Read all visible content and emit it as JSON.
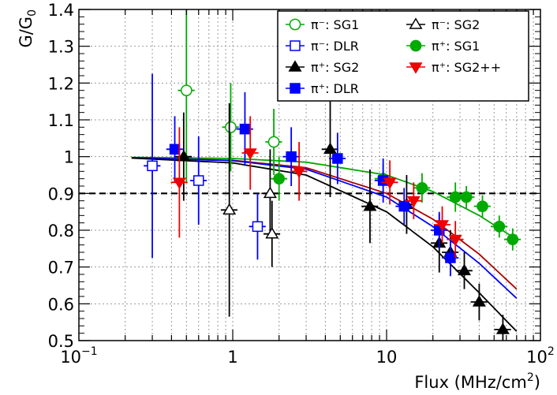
{
  "chart_data": {
    "type": "scatter",
    "title": "",
    "xlabel": "Flux (MHz/cm",
    "xlabel_sup": "2",
    "xlabel_close": ")",
    "ylabel": "G/G",
    "ylabel_sub": "0",
    "x_scale": "log",
    "xlim": [
      0.1,
      100
    ],
    "ylim": [
      0.5,
      1.4
    ],
    "grid": true,
    "legend_position": "top-right",
    "reference_line": {
      "y": 0.9,
      "style": "dashed",
      "color": "#000000"
    },
    "x_ticks": [
      {
        "value": 0.1,
        "base": "10",
        "exp": "−1"
      },
      {
        "value": 1,
        "label": "1"
      },
      {
        "value": 10,
        "label": "10"
      },
      {
        "value": 100,
        "base": "10",
        "exp": "2"
      }
    ],
    "y_ticks": [
      "0.5",
      "0.6",
      "0.7",
      "0.8",
      "0.9",
      "1",
      "1.1",
      "1.2",
      "1.3",
      "1.4"
    ],
    "series": [
      {
        "name": "π⁻: SG1",
        "color": "#00aa00",
        "marker": "circle",
        "filled": false,
        "points": [
          {
            "x": 0.5,
            "y": 1.18,
            "yerr": 0.25
          },
          {
            "x": 0.97,
            "y": 1.08,
            "yerr": 0.12
          },
          {
            "x": 1.85,
            "y": 1.04,
            "yerr": 0.09
          }
        ]
      },
      {
        "name": "π⁻: SG2",
        "color": "#000000",
        "marker": "triangle",
        "filled": false,
        "points": [
          {
            "x": 0.95,
            "y": 0.855,
            "yerr": 0.29
          },
          {
            "x": 1.75,
            "y": 0.9,
            "yerr": 0.12
          },
          {
            "x": 1.8,
            "y": 0.79,
            "yerr": 0.09
          }
        ]
      },
      {
        "name": "π⁻: DLR",
        "color": "#0000ff",
        "marker": "square",
        "filled": false,
        "points": [
          {
            "x": 0.3,
            "y": 0.975,
            "yerr": 0.25
          },
          {
            "x": 0.6,
            "y": 0.935,
            "yerr": 0.12
          },
          {
            "x": 1.45,
            "y": 0.81,
            "yerr": 0.09
          }
        ]
      },
      {
        "name": "π⁺: SG1",
        "color": "#00aa00",
        "marker": "circle",
        "filled": true,
        "points": [
          {
            "x": 2.0,
            "y": 0.94,
            "yerr": 0.06
          },
          {
            "x": 9.5,
            "y": 0.94,
            "yerr": 0.04
          },
          {
            "x": 17,
            "y": 0.915,
            "yerr": 0.04
          },
          {
            "x": 28,
            "y": 0.89,
            "yerr": 0.04
          },
          {
            "x": 33,
            "y": 0.89,
            "yerr": 0.03
          },
          {
            "x": 42,
            "y": 0.865,
            "yerr": 0.03
          },
          {
            "x": 54,
            "y": 0.81,
            "yerr": 0.03
          },
          {
            "x": 66,
            "y": 0.775,
            "yerr": 0.03
          }
        ]
      },
      {
        "name": "π⁺: SG2",
        "color": "#000000",
        "marker": "triangle",
        "filled": true,
        "points": [
          {
            "x": 0.48,
            "y": 1.0,
            "yerr": 0.12
          },
          {
            "x": 4.3,
            "y": 1.02,
            "yerr": 0.13
          },
          {
            "x": 7.8,
            "y": 0.865,
            "yerr": 0.1
          },
          {
            "x": 13.5,
            "y": 0.87,
            "yerr": 0.08
          },
          {
            "x": 22,
            "y": 0.765,
            "yerr": 0.08
          },
          {
            "x": 26,
            "y": 0.74,
            "yerr": 0.06
          },
          {
            "x": 32,
            "y": 0.69,
            "yerr": 0.05
          },
          {
            "x": 40,
            "y": 0.605,
            "yerr": 0.05
          },
          {
            "x": 57,
            "y": 0.53,
            "yerr": 0.04
          }
        ]
      },
      {
        "name": "π⁺: DLR",
        "color": "#0000ff",
        "marker": "square",
        "filled": true,
        "points": [
          {
            "x": 0.42,
            "y": 1.02,
            "yerr": 0.09
          },
          {
            "x": 1.2,
            "y": 1.075,
            "yerr": 0.1
          },
          {
            "x": 2.4,
            "y": 1.0,
            "yerr": 0.08
          },
          {
            "x": 4.8,
            "y": 0.995,
            "yerr": 0.07
          },
          {
            "x": 9.5,
            "y": 0.935,
            "yerr": 0.06
          },
          {
            "x": 13,
            "y": 0.865,
            "yerr": 0.05
          },
          {
            "x": 22,
            "y": 0.8,
            "yerr": 0.05
          },
          {
            "x": 26,
            "y": 0.725,
            "yerr": 0.05
          }
        ]
      },
      {
        "name": "π⁺: SG2++",
        "color": "#ee0000",
        "marker": "triangle-down",
        "filled": true,
        "points": [
          {
            "x": 0.45,
            "y": 0.93,
            "yerr": 0.15
          },
          {
            "x": 1.3,
            "y": 1.01,
            "yerr": 0.1
          },
          {
            "x": 2.7,
            "y": 0.96,
            "yerr": 0.08
          },
          {
            "x": 10.5,
            "y": 0.93,
            "yerr": 0.06
          },
          {
            "x": 15,
            "y": 0.88,
            "yerr": 0.05
          },
          {
            "x": 23,
            "y": 0.815,
            "yerr": 0.05
          },
          {
            "x": 28,
            "y": 0.775,
            "yerr": 0.05
          }
        ]
      }
    ],
    "fit_curves": [
      {
        "color": "#00aa00",
        "x": [
          0.22,
          1,
          3,
          10,
          20,
          40,
          70
        ],
        "y": [
          0.998,
          0.995,
          0.985,
          0.95,
          0.905,
          0.84,
          0.775
        ]
      },
      {
        "color": "#aa0000",
        "x": [
          0.22,
          1,
          3,
          10,
          20,
          40,
          70
        ],
        "y": [
          0.997,
          0.99,
          0.97,
          0.9,
          0.83,
          0.735,
          0.64
        ]
      },
      {
        "color": "#0000ff",
        "x": [
          0.22,
          1,
          3,
          10,
          20,
          40,
          70
        ],
        "y": [
          0.997,
          0.989,
          0.966,
          0.89,
          0.81,
          0.71,
          0.615
        ]
      },
      {
        "color": "#000000",
        "x": [
          0.22,
          1,
          3,
          10,
          20,
          40,
          70
        ],
        "y": [
          0.996,
          0.983,
          0.95,
          0.85,
          0.755,
          0.63,
          0.525
        ]
      }
    ]
  },
  "legend": {
    "rows": [
      [
        {
          "series": 0,
          "label": "π⁻: SG1"
        },
        {
          "series": 1,
          "label": "π⁻: SG2"
        }
      ],
      [
        {
          "series": 2,
          "label": "π⁻: DLR"
        },
        {
          "series": 3,
          "label": "π⁺: SG1"
        }
      ],
      [
        {
          "series": 4,
          "label": "π⁺: SG2"
        },
        {
          "series": 6,
          "label": "π⁺: SG2++"
        }
      ],
      [
        {
          "series": 5,
          "label": "π⁺: DLR"
        }
      ]
    ]
  }
}
